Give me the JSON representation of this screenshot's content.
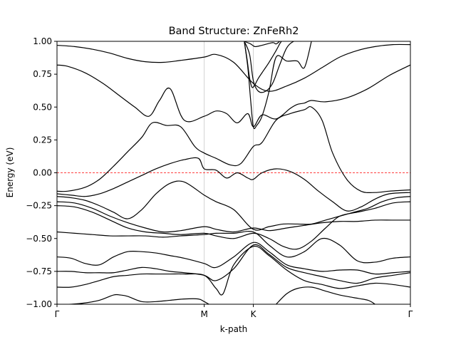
{
  "chart_data": {
    "type": "line",
    "title": "Band Structure: ZnFeRh2",
    "xlabel": "k-path",
    "ylabel": "Energy (eV)",
    "ylim": [
      -1.0,
      1.0
    ],
    "xlim": [
      0,
      1
    ],
    "x_ticks": [
      {
        "label": "Γ",
        "pos": 0.0
      },
      {
        "label": "M",
        "pos": 0.4166
      },
      {
        "label": "K",
        "pos": 0.5556
      },
      {
        "label": "Γ",
        "pos": 1.0
      }
    ],
    "y_ticks": [
      {
        "label": "1.00",
        "value": 1.0
      },
      {
        "label": "0.75",
        "value": 0.75
      },
      {
        "label": "0.50",
        "value": 0.5
      },
      {
        "label": "0.25",
        "value": 0.25
      },
      {
        "label": "0.00",
        "value": 0.0
      },
      {
        "label": "−0.25",
        "value": -0.25
      },
      {
        "label": "−0.50",
        "value": -0.5
      },
      {
        "label": "−0.75",
        "value": -0.75
      },
      {
        "label": "−1.00",
        "value": -1.0
      }
    ],
    "fermi_level": 0.0,
    "vertical_lines_at": [
      0.4166,
      0.5556
    ],
    "colors": {
      "band": "#000000",
      "fermi": "#ff0000",
      "vline": "#c8c8c8"
    },
    "series": [
      {
        "x": [
          0,
          0.05,
          0.1,
          0.15,
          0.2,
          0.25,
          0.3,
          0.35,
          0.4166,
          0.45,
          0.5,
          0.5556,
          0.6,
          0.65,
          0.7,
          0.75,
          0.8,
          0.85,
          0.9,
          0.95,
          1.0
        ],
        "y": [
          0.97,
          0.96,
          0.94,
          0.91,
          0.87,
          0.845,
          0.84,
          0.855,
          0.88,
          0.9,
          0.84,
          0.68,
          0.62,
          0.66,
          0.72,
          0.8,
          0.88,
          0.93,
          0.96,
          0.975,
          0.975
        ]
      },
      {
        "x": [
          0,
          0.03,
          0.08,
          0.13,
          0.18,
          0.22,
          0.26,
          0.29,
          0.32,
          0.36,
          0.4166,
          0.45,
          0.48,
          0.51,
          0.54,
          0.5556,
          0.58,
          0.62,
          0.66,
          0.68,
          0.7,
          0.72,
          0.76,
          0.82,
          0.88,
          0.94,
          1.0
        ],
        "y": [
          0.82,
          0.81,
          0.76,
          0.68,
          0.58,
          0.5,
          0.43,
          0.55,
          0.64,
          0.4,
          0.43,
          0.47,
          0.45,
          0.38,
          0.45,
          0.35,
          0.44,
          0.41,
          0.49,
          0.52,
          0.53,
          0.55,
          0.54,
          0.57,
          0.64,
          0.74,
          0.82
        ]
      },
      {
        "x": [
          0,
          0.03,
          0.08,
          0.12,
          0.16,
          0.2,
          0.24,
          0.27,
          0.31,
          0.35,
          0.39,
          0.4166,
          0.45,
          0.49,
          0.52,
          0.5556,
          0.58,
          0.62,
          0.66,
          0.7,
          0.72,
          0.75,
          0.78,
          0.82,
          0.86,
          0.9,
          0.94,
          1.0
        ],
        "y": [
          -0.14,
          -0.14,
          -0.11,
          -0.05,
          0.05,
          0.16,
          0.27,
          0.38,
          0.36,
          0.35,
          0.2,
          0.15,
          0.11,
          0.06,
          0.07,
          0.2,
          0.23,
          0.4,
          0.45,
          0.48,
          0.5,
          0.4,
          0.15,
          -0.05,
          -0.14,
          -0.15,
          -0.14,
          -0.13
        ]
      },
      {
        "x": [
          0,
          0.04,
          0.08,
          0.12,
          0.16,
          0.2,
          0.24,
          0.28,
          0.32,
          0.36,
          0.4,
          0.4166,
          0.45,
          0.48,
          0.51,
          0.54,
          0.5556,
          0.58,
          0.62,
          0.66,
          0.7,
          0.74,
          0.78,
          0.82,
          0.86,
          0.9,
          0.94,
          1.0
        ],
        "y": [
          -0.16,
          -0.17,
          -0.18,
          -0.16,
          -0.12,
          -0.07,
          -0.02,
          0.03,
          0.07,
          0.1,
          0.11,
          0.03,
          0.02,
          -0.04,
          0.0,
          -0.04,
          -0.05,
          0.0,
          0.03,
          0.01,
          -0.05,
          -0.14,
          -0.22,
          -0.29,
          -0.26,
          -0.2,
          -0.16,
          -0.15
        ]
      },
      {
        "x": [
          0,
          0.04,
          0.08,
          0.12,
          0.16,
          0.2,
          0.24,
          0.28,
          0.32,
          0.36,
          0.4166,
          0.45,
          0.5,
          0.5556,
          0.6,
          0.64,
          0.68,
          0.72,
          0.76,
          0.8,
          0.84,
          0.88,
          0.92,
          0.96,
          1.0
        ],
        "y": [
          -0.18,
          -0.19,
          -0.21,
          -0.25,
          -0.3,
          -0.35,
          -0.28,
          -0.16,
          -0.08,
          -0.07,
          -0.17,
          -0.22,
          -0.28,
          -0.43,
          -0.41,
          -0.39,
          -0.39,
          -0.39,
          -0.36,
          -0.33,
          -0.3,
          -0.27,
          -0.22,
          -0.19,
          -0.18
        ]
      },
      {
        "x": [
          0,
          0.05,
          0.1,
          0.15,
          0.2,
          0.25,
          0.3,
          0.35,
          0.4166,
          0.45,
          0.5,
          0.5556,
          0.6,
          0.65,
          0.7,
          0.75,
          0.8,
          0.85,
          0.9,
          0.95,
          1.0
        ],
        "y": [
          -0.22,
          -0.23,
          -0.27,
          -0.33,
          -0.38,
          -0.42,
          -0.45,
          -0.44,
          -0.41,
          -0.43,
          -0.45,
          -0.42,
          -0.44,
          -0.42,
          -0.4,
          -0.38,
          -0.37,
          -0.37,
          -0.36,
          -0.36,
          -0.36
        ]
      },
      {
        "x": [
          0,
          0.05,
          0.1,
          0.15,
          0.2,
          0.25,
          0.3,
          0.35,
          0.4166,
          0.45,
          0.5,
          0.5556,
          0.6,
          0.64,
          0.68,
          0.72,
          0.76,
          0.8,
          0.85,
          0.9,
          0.95,
          1.0
        ],
        "y": [
          -0.25,
          -0.26,
          -0.3,
          -0.36,
          -0.42,
          -0.45,
          -0.46,
          -0.47,
          -0.46,
          -0.48,
          -0.5,
          -0.46,
          -0.5,
          -0.56,
          -0.58,
          -0.52,
          -0.42,
          -0.33,
          -0.3,
          -0.27,
          -0.23,
          -0.22
        ]
      },
      {
        "x": [
          0,
          0.05,
          0.1,
          0.15,
          0.2,
          0.25,
          0.3,
          0.35,
          0.4166,
          0.45,
          0.5,
          0.5556,
          0.6,
          0.65,
          0.7,
          0.75,
          0.8,
          0.85,
          0.9,
          0.95,
          1.0
        ],
        "y": [
          -0.45,
          -0.46,
          -0.47,
          -0.48,
          -0.48,
          -0.48,
          -0.49,
          -0.48,
          -0.47,
          -0.46,
          -0.46,
          -0.45,
          -0.55,
          -0.64,
          -0.6,
          -0.5,
          -0.55,
          -0.67,
          -0.68,
          -0.65,
          -0.64
        ]
      },
      {
        "x": [
          0,
          0.04,
          0.08,
          0.12,
          0.16,
          0.2,
          0.24,
          0.28,
          0.32,
          0.36,
          0.4166,
          0.45,
          0.5,
          0.5556,
          0.6,
          0.65,
          0.7,
          0.75,
          0.8,
          0.85,
          0.9,
          0.95,
          1.0
        ],
        "y": [
          -0.64,
          -0.65,
          -0.69,
          -0.7,
          -0.64,
          -0.6,
          -0.6,
          -0.61,
          -0.63,
          -0.65,
          -0.69,
          -0.72,
          -0.64,
          -0.53,
          -0.6,
          -0.7,
          -0.73,
          -0.75,
          -0.74,
          -0.74,
          -0.77,
          -0.76,
          -0.75
        ]
      },
      {
        "x": [
          0,
          0.04,
          0.08,
          0.12,
          0.16,
          0.2,
          0.24,
          0.28,
          0.32,
          0.36,
          0.4166,
          0.45,
          0.5,
          0.5556,
          0.6,
          0.65,
          0.7,
          0.75,
          0.8,
          0.85,
          0.9,
          0.95,
          1.0
        ],
        "y": [
          -0.75,
          -0.75,
          -0.76,
          -0.76,
          -0.76,
          -0.74,
          -0.72,
          -0.73,
          -0.75,
          -0.76,
          -0.78,
          -0.82,
          -0.73,
          -0.55,
          -0.62,
          -0.72,
          -0.76,
          -0.79,
          -0.82,
          -0.84,
          -0.8,
          -0.78,
          -0.76
        ]
      },
      {
        "x": [
          0,
          0.04,
          0.08,
          0.12,
          0.16,
          0.2,
          0.24,
          0.28,
          0.32,
          0.36,
          0.4166,
          0.45,
          0.47,
          0.5,
          0.5556,
          0.6,
          0.65,
          0.7,
          0.75,
          0.8,
          0.85,
          0.9,
          0.95,
          1.0
        ],
        "y": [
          -0.87,
          -0.87,
          -0.85,
          -0.82,
          -0.79,
          -0.78,
          -0.77,
          -0.77,
          -0.77,
          -0.77,
          -0.78,
          -0.88,
          -0.92,
          -0.7,
          -0.56,
          -0.63,
          -0.74,
          -0.82,
          -0.85,
          -0.88,
          -0.86,
          -0.84,
          -0.85,
          -0.87
        ]
      },
      {
        "x": [
          0,
          0.04,
          0.08,
          0.12,
          0.16,
          0.18,
          0.2,
          0.24,
          0.28,
          0.32,
          0.36,
          0.4,
          0.4166,
          0.43
        ],
        "y": [
          -1.0,
          -1.0,
          -0.99,
          -0.97,
          -0.93,
          -0.93,
          -0.94,
          -0.98,
          -0.98,
          -0.97,
          -0.96,
          -0.96,
          -0.98,
          -1.0
        ]
      },
      {
        "x": [
          0.62,
          0.65,
          0.68,
          0.72,
          0.76,
          0.8,
          0.84,
          0.88,
          0.9
        ],
        "y": [
          -1.0,
          -0.92,
          -0.88,
          -0.87,
          -0.9,
          -0.93,
          -0.95,
          -0.97,
          -1.0
        ]
      },
      {
        "x": [
          0.53,
          0.538,
          0.545,
          0.552,
          0.56,
          0.57,
          0.585,
          0.6,
          0.62,
          0.63,
          0.635
        ],
        "y": [
          1.0,
          0.86,
          0.72,
          0.65,
          0.67,
          0.72,
          0.78,
          0.84,
          0.93,
          0.98,
          1.0
        ]
      },
      {
        "x": [
          0.53,
          0.548,
          0.56,
          0.58,
          0.61,
          0.62,
          0.63
        ],
        "y": [
          1.0,
          0.98,
          0.96,
          0.97,
          0.99,
          0.98,
          1.0
        ]
      },
      {
        "x": [
          0.53,
          0.54,
          0.548,
          0.5556,
          0.565,
          0.58,
          0.6,
          0.62,
          0.65,
          0.68,
          0.7,
          0.72
        ],
        "y": [
          1.0,
          0.8,
          0.55,
          0.35,
          0.36,
          0.43,
          0.62,
          0.88,
          0.85,
          0.85,
          0.8,
          1.0
        ]
      },
      {
        "x": [
          0.53,
          0.545,
          0.5556,
          0.57,
          0.59,
          0.61,
          0.63,
          0.65,
          0.67,
          0.69
        ],
        "y": [
          1.0,
          0.9,
          0.7,
          0.62,
          0.62,
          0.68,
          0.82,
          0.95,
          1.0,
          1.0
        ]
      }
    ]
  }
}
